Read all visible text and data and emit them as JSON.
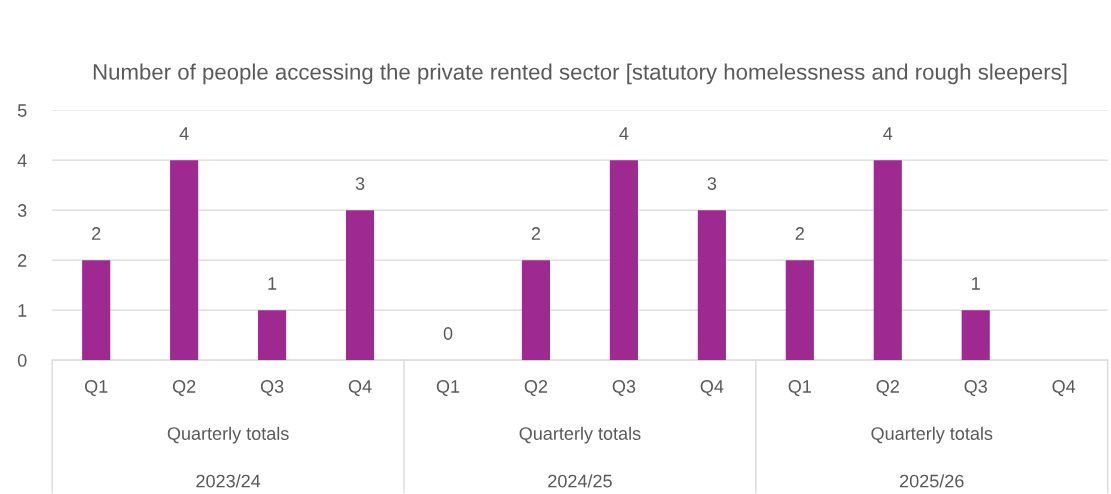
{
  "chart_data": {
    "type": "bar",
    "title": "Number of people accessing the private rented sector [statutory homelessness and rough sleepers]",
    "categories": [
      "Q1",
      "Q2",
      "Q3",
      "Q4",
      "Q1",
      "Q2",
      "Q3",
      "Q4",
      "Q1",
      "Q2",
      "Q3",
      "Q4"
    ],
    "values": [
      2,
      4,
      1,
      3,
      0,
      2,
      4,
      3,
      2,
      4,
      1,
      null
    ],
    "color": "#9e2a91",
    "ylim": [
      0,
      5
    ],
    "yticks": [
      0,
      1,
      2,
      3,
      4,
      5
    ],
    "grid": "y",
    "data_labels": true,
    "annotations": [
      "Quarterly totals",
      "2023/24",
      "Quarterly totals",
      "2024/25",
      "Quarterly totals",
      "2025/26"
    ]
  }
}
